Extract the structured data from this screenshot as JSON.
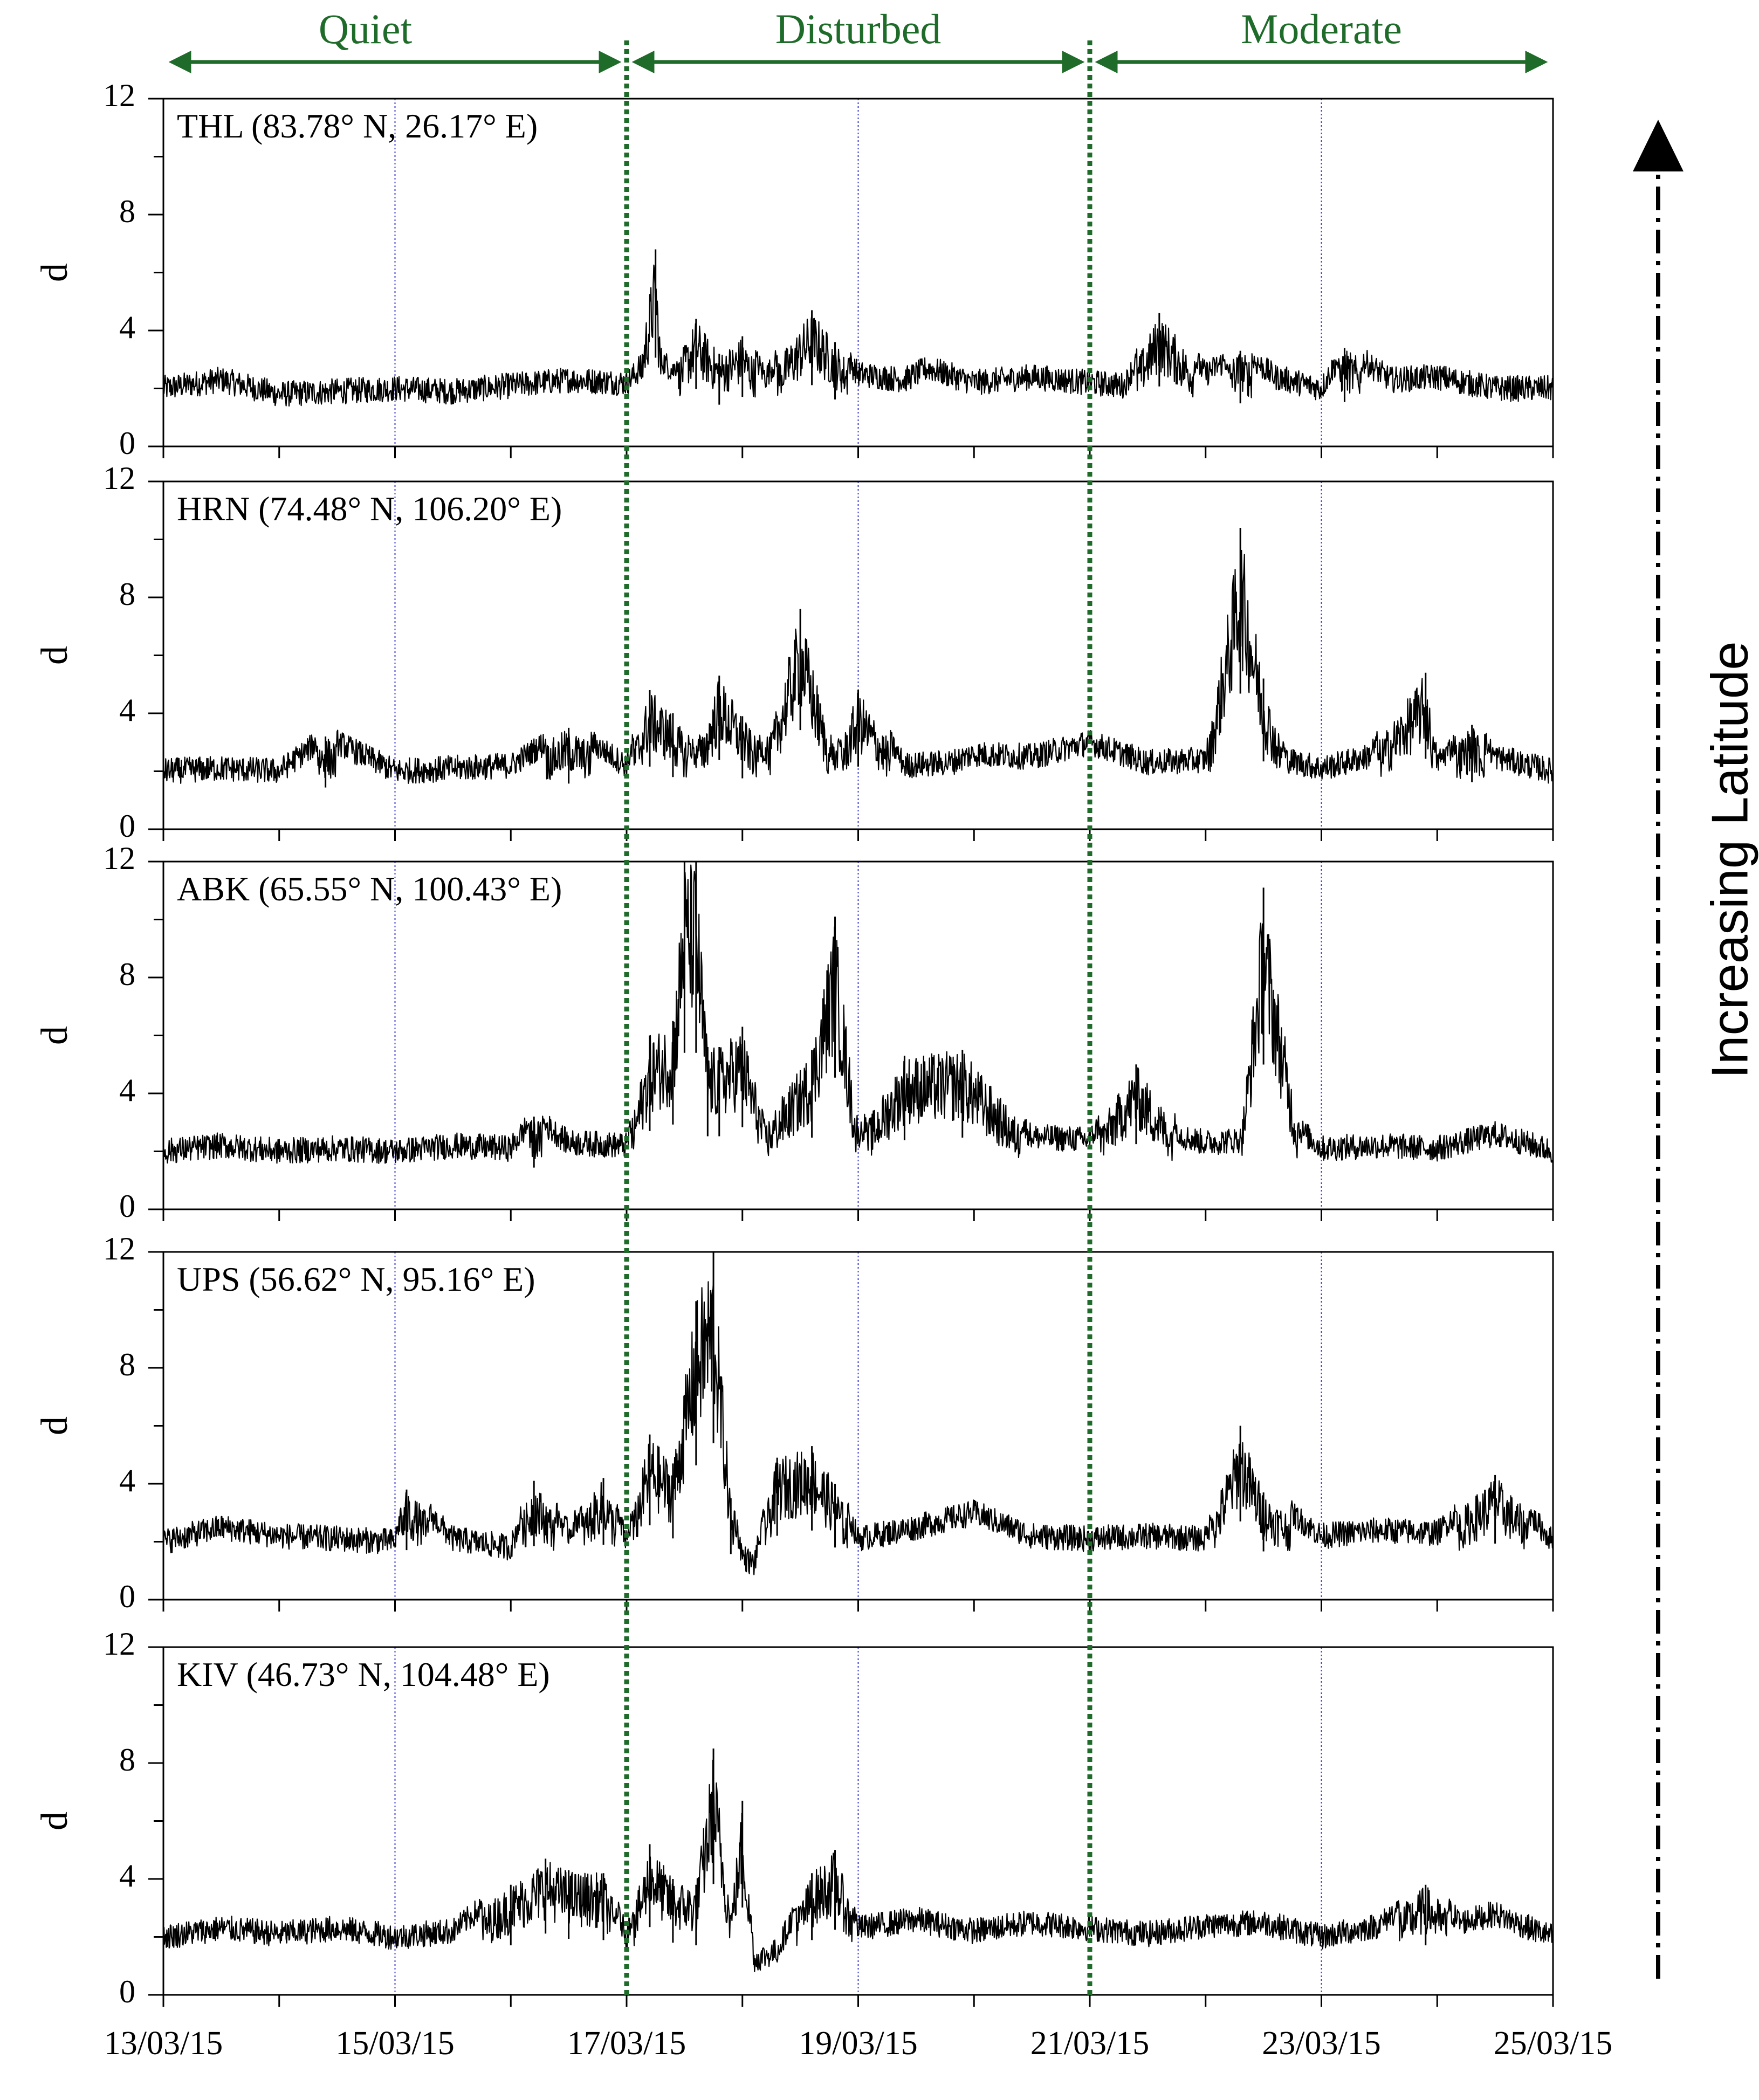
{
  "figure": {
    "colors": {
      "series": "#000000",
      "period": "#1f6b2a",
      "separator": "#1f6b2a",
      "day_guide": "#3a3ad0",
      "axis": "#000000"
    },
    "periods": [
      {
        "label": "Quiet",
        "start_day": 0,
        "end_day": 4
      },
      {
        "label": "Disturbed",
        "start_day": 4,
        "end_day": 8
      },
      {
        "label": "Moderate",
        "start_day": 8,
        "end_day": 12
      }
    ],
    "separator_days": [
      4,
      8
    ],
    "day_guides": [
      2,
      6,
      10
    ],
    "side_label": "Increasing Latitude"
  },
  "chart_data": [
    {
      "type": "line",
      "title": "THL (83.78° N,  26.17° E)",
      "ylabel": "d",
      "xlabel": "",
      "ylim": [
        0,
        12
      ],
      "yticks": [
        0,
        4,
        8,
        12
      ],
      "xlim_days": [
        0,
        12
      ],
      "xticks": [
        "13/03/15",
        "15/03/15",
        "17/03/15",
        "19/03/15",
        "21/03/15",
        "23/03/15",
        "25/03/15"
      ],
      "series": [
        {
          "name": "THL",
          "x_days": [
            0,
            0.5,
            1,
            1.5,
            2,
            2.5,
            3,
            3.5,
            4,
            4.1,
            4.25,
            4.3,
            4.4,
            4.6,
            4.8,
            5.0,
            5.2,
            5.6,
            5.8,
            6.0,
            6.4,
            6.6,
            7.0,
            7.5,
            8.0,
            8.3,
            8.6,
            9.0,
            9.3,
            9.6,
            10.0,
            10.2,
            10.6,
            11.0,
            11.5,
            12
          ],
          "values": [
            2.0,
            2.3,
            1.8,
            1.9,
            2.0,
            1.9,
            2.1,
            2.3,
            2.2,
            2.6,
            6.8,
            3.0,
            2.6,
            4.4,
            3.2,
            3.8,
            2.4,
            4.7,
            3.6,
            2.5,
            2.3,
            2.7,
            2.2,
            2.4,
            2.2,
            2.1,
            4.6,
            2.5,
            3.3,
            2.4,
            2.0,
            3.4,
            2.3,
            2.4,
            2.0,
            2.0
          ]
        }
      ]
    },
    {
      "type": "line",
      "title": "HRN (74.48° N, 106.20° E)",
      "ylabel": "d",
      "xlabel": "",
      "ylim": [
        0,
        12
      ],
      "yticks": [
        0,
        4,
        8,
        12
      ],
      "xlim_days": [
        0,
        12
      ],
      "xticks": [
        "13/03/15",
        "15/03/15",
        "17/03/15",
        "19/03/15",
        "21/03/15",
        "23/03/15",
        "25/03/15"
      ],
      "series": [
        {
          "name": "HRN",
          "x_days": [
            0,
            0.5,
            1,
            1.4,
            2,
            2.5,
            3,
            3.5,
            4,
            4.2,
            4.4,
            4.6,
            4.8,
            5.0,
            5.2,
            5.5,
            5.8,
            6.0,
            6.4,
            6.8,
            7.0,
            7.5,
            8.0,
            8.5,
            9.0,
            9.3,
            9.5,
            9.7,
            10.0,
            10.2,
            10.4,
            10.9,
            11.0,
            11.3,
            11.5,
            12
          ],
          "values": [
            2.0,
            2.1,
            2.0,
            3.2,
            2.0,
            2.1,
            2.2,
            3.5,
            2.2,
            4.8,
            4.0,
            2.5,
            5.3,
            3.9,
            2.6,
            7.6,
            2.3,
            4.8,
            2.2,
            2.3,
            2.6,
            2.5,
            3.0,
            2.3,
            2.4,
            10.4,
            5.2,
            2.4,
            2.1,
            2.3,
            2.5,
            5.4,
            2.3,
            3.6,
            2.5,
            2.0
          ]
        }
      ]
    },
    {
      "type": "line",
      "title": "ABK (65.55° N, 100.43° E)",
      "ylabel": "d",
      "xlabel": "",
      "ylim": [
        0,
        12
      ],
      "yticks": [
        0,
        4,
        8,
        12
      ],
      "xlim_days": [
        0,
        12
      ],
      "xticks": [
        "13/03/15",
        "15/03/15",
        "17/03/15",
        "19/03/15",
        "21/03/15",
        "23/03/15",
        "25/03/15"
      ],
      "series": [
        {
          "name": "ABK",
          "x_days": [
            0,
            0.5,
            1,
            1.5,
            2,
            2.5,
            3,
            3.2,
            3.5,
            4,
            4.2,
            4.4,
            4.5,
            4.6,
            4.7,
            4.8,
            5.0,
            5.2,
            5.6,
            5.8,
            6.0,
            6.4,
            6.9,
            7.5,
            8.0,
            8.4,
            8.8,
            9.0,
            9.3,
            9.5,
            9.8,
            10.0,
            10.5,
            11.0,
            11.5,
            12
          ],
          "values": [
            2.0,
            2.2,
            2.0,
            2.1,
            2.0,
            2.2,
            2.1,
            3.2,
            2.3,
            2.2,
            6.0,
            6.5,
            12.0,
            12.0,
            5.6,
            5.6,
            6.3,
            3.0,
            5.5,
            10.1,
            2.5,
            5.3,
            5.5,
            2.5,
            2.4,
            5.0,
            2.5,
            2.3,
            2.4,
            11.1,
            2.8,
            2.1,
            2.2,
            2.1,
            2.6,
            2.0
          ]
        }
      ]
    },
    {
      "type": "line",
      "title": "UPS (56.62° N, 95.16° E)",
      "ylabel": "d",
      "xlabel": "",
      "ylim": [
        0,
        12
      ],
      "yticks": [
        0,
        4,
        8,
        12
      ],
      "xlim_days": [
        0,
        12
      ],
      "xticks": [
        "13/03/15",
        "15/03/15",
        "17/03/15",
        "19/03/15",
        "21/03/15",
        "23/03/15",
        "25/03/15"
      ],
      "series": [
        {
          "name": "UPS",
          "x_days": [
            0,
            0.5,
            1,
            1.5,
            2,
            2.1,
            2.5,
            3,
            3.2,
            3.5,
            3.8,
            4,
            4.2,
            4.4,
            4.6,
            4.75,
            4.9,
            5.0,
            5.1,
            5.3,
            5.6,
            5.8,
            6.0,
            6.5,
            7.0,
            7.5,
            8.0,
            8.5,
            9.0,
            9.3,
            9.5,
            10.0,
            10.5,
            11.0,
            11.5,
            12
          ],
          "values": [
            2.0,
            2.5,
            2.2,
            2.1,
            2.0,
            3.8,
            2.1,
            1.8,
            4.1,
            2.3,
            4.2,
            2.0,
            5.7,
            4.7,
            10.3,
            12.0,
            3.5,
            1.5,
            1.2,
            4.9,
            5.3,
            4.0,
            2.1,
            2.5,
            3.0,
            2.2,
            2.1,
            2.2,
            2.1,
            6.0,
            3.7,
            2.2,
            2.4,
            2.3,
            4.3,
            2.0
          ]
        }
      ]
    },
    {
      "type": "line",
      "title": "KIV (46.73° N, 104.48° E)",
      "ylabel": "d",
      "xlabel": "",
      "ylim": [
        0,
        12
      ],
      "yticks": [
        0,
        4,
        8,
        12
      ],
      "xlim_days": [
        0,
        12
      ],
      "xticks": [
        "13/03/15",
        "15/03/15",
        "17/03/15",
        "19/03/15",
        "21/03/15",
        "23/03/15",
        "25/03/15"
      ],
      "series": [
        {
          "name": "KIV",
          "x_days": [
            0,
            0.5,
            1,
            1.5,
            2,
            2.5,
            3,
            3.3,
            3.5,
            3.8,
            4,
            4.2,
            4.4,
            4.6,
            4.75,
            4.9,
            5.0,
            5.1,
            5.3,
            5.6,
            5.8,
            6.0,
            6.5,
            7.0,
            7.5,
            8.0,
            8.5,
            9.0,
            9.5,
            10.0,
            10.5,
            10.9,
            11.2,
            11.5,
            11.8,
            12
          ],
          "values": [
            2.0,
            2.3,
            2.1,
            2.3,
            2.0,
            2.2,
            3.8,
            4.7,
            4.3,
            4.2,
            2.0,
            5.2,
            4.0,
            3.8,
            8.5,
            3.0,
            6.7,
            1.2,
            1.5,
            4.2,
            5.0,
            2.3,
            2.6,
            2.2,
            2.5,
            2.3,
            2.1,
            2.4,
            2.5,
            2.0,
            2.4,
            3.8,
            2.5,
            2.8,
            2.3,
            2.0
          ]
        }
      ]
    }
  ]
}
